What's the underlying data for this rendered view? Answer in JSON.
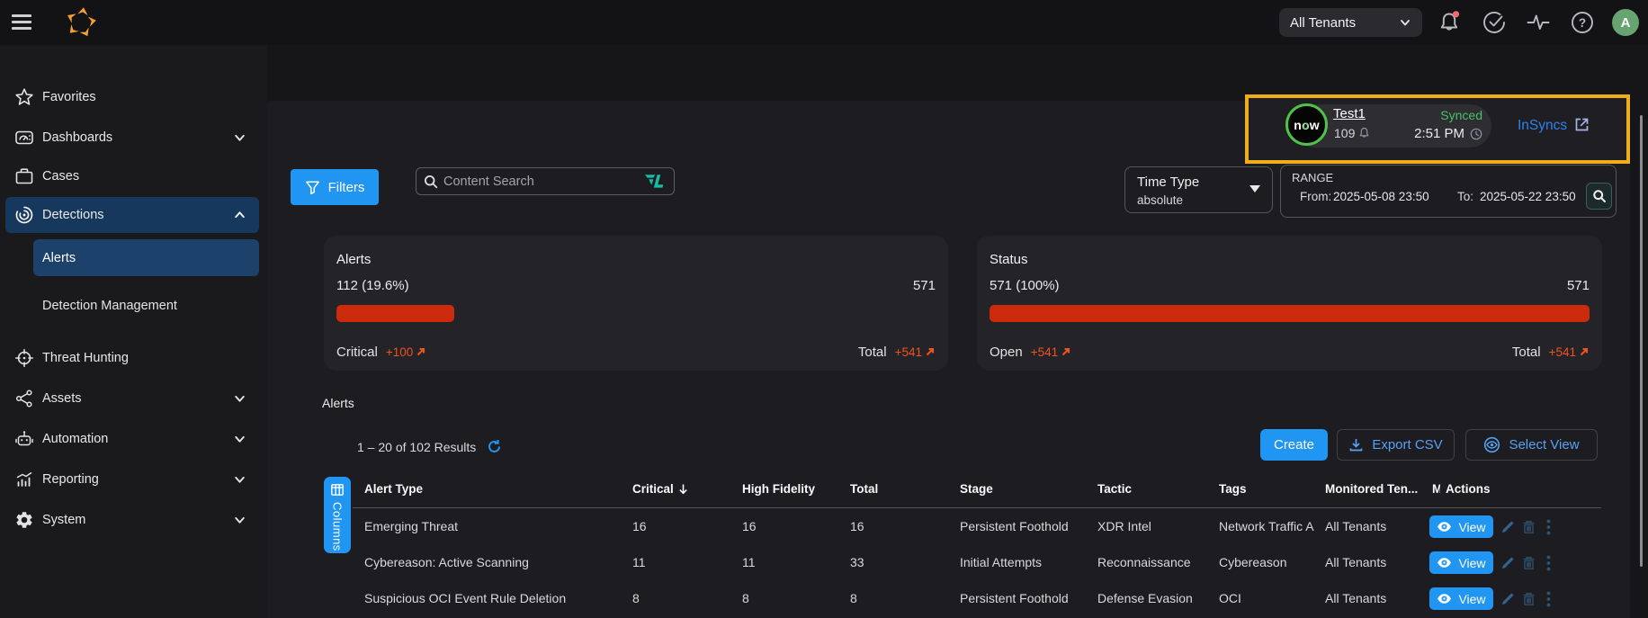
{
  "colors": {
    "accent_blue": "#2095f2",
    "bar_red": "#cb2a0c",
    "delta_orange": "#ef531f",
    "widget_border_gold": "#f0ad1a",
    "synced_green": "#4cc06a",
    "link_blue": "#2f81ed",
    "avatar_green": "#67a472",
    "teal_icon": "#16bca4"
  },
  "topbar": {
    "tenant_selector_value": "All Tenants",
    "avatar_initial": "A",
    "icons": [
      "hamburger-icon",
      "stellar-logo",
      "bell-icon",
      "check-circle-icon",
      "pulse-icon",
      "help-icon"
    ]
  },
  "sidebar": {
    "items": [
      {
        "label": "Favorites"
      },
      {
        "label": "Dashboards"
      },
      {
        "label": "Cases"
      },
      {
        "label": "Detections"
      },
      {
        "label": "Threat Hunting"
      },
      {
        "label": "Assets"
      },
      {
        "label": "Automation"
      },
      {
        "label": "Reporting"
      },
      {
        "label": "System"
      }
    ],
    "detections_children": [
      {
        "label": "Alerts"
      },
      {
        "label": "Detection Management"
      }
    ]
  },
  "servicenow_widget": {
    "logo_text_n": "n",
    "logo_text_o": "o",
    "logo_text_w": "w",
    "name": "Test1",
    "count": "109",
    "status": "Synced",
    "time": "2:51 PM",
    "link": "InSyncs"
  },
  "toolbar": {
    "filters_label": "Filters",
    "search_placeholder": "Content Search"
  },
  "time_controls": {
    "type_label": "Time Type",
    "type_value": "absolute",
    "range_label": "RANGE",
    "from_label": "From:",
    "from_value": "2025-05-08 23:50",
    "to_label": "To:",
    "to_value": "2025-05-22 23:50"
  },
  "cards": {
    "alerts": {
      "title": "Alerts",
      "left_value": "112 (19.6%)",
      "right_value": "571",
      "bar_percent": 19.6,
      "footer_left_label": "Critical",
      "footer_left_delta": "+100",
      "footer_right_label": "Total",
      "footer_right_delta": "+541"
    },
    "status": {
      "title": "Status",
      "left_value": "571 (100%)",
      "right_value": "571",
      "bar_percent": 100,
      "footer_left_label": "Open",
      "footer_left_delta": "+541",
      "footer_right_label": "Total",
      "footer_right_delta": "+541"
    }
  },
  "table_section": {
    "heading": "Alerts",
    "results_text": "1 – 20 of 102 Results",
    "create_label": "Create",
    "export_label": "Export CSV",
    "select_view_label": "Select View",
    "columns_button_label": "Columns",
    "headers": {
      "alert_type": "Alert Type",
      "critical": "Critical",
      "high_fidelity": "High Fidelity",
      "total": "Total",
      "stage": "Stage",
      "tactic": "Tactic",
      "tags": "Tags",
      "monitored_tenants": "Monitored Ten...",
      "truncated": "M",
      "actions": "Actions"
    },
    "view_label": "View",
    "rows": [
      {
        "alert_type": "Emerging Threat",
        "critical": "16",
        "high_fidelity": "16",
        "total": "16",
        "stage": "Persistent Foothold",
        "tactic": "XDR Intel",
        "tags": "Network Traffic A",
        "monitored_tenants": "All Tenants"
      },
      {
        "alert_type": "Cybereason: Active Scanning",
        "critical": "11",
        "high_fidelity": "11",
        "total": "33",
        "stage": "Initial Attempts",
        "tactic": "Reconnaissance",
        "tags": "Cybereason",
        "monitored_tenants": "All Tenants"
      },
      {
        "alert_type": "Suspicious OCI Event Rule Deletion",
        "critical": "8",
        "high_fidelity": "8",
        "total": "8",
        "stage": "Persistent Foothold",
        "tactic": "Defense Evasion",
        "tags": "OCI",
        "monitored_tenants": "All Tenants"
      }
    ]
  }
}
